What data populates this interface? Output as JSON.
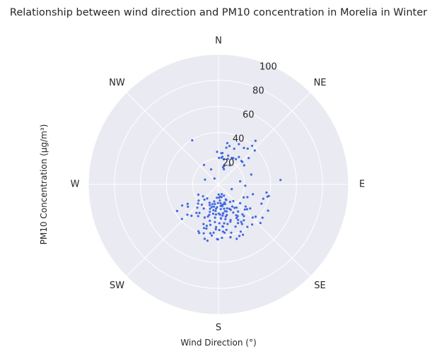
{
  "chart_data": {
    "type": "scatter",
    "projection": "polar",
    "title": "Relationship between wind direction and PM10 concentration in Morelia in Winter",
    "xlabel": "Wind Direction (°)",
    "ylabel": "PM10 Concentration (µg/m³)",
    "theta_direction": "clockwise",
    "theta_zero": "N",
    "direction_labels": [
      "N",
      "NE",
      "E",
      "SE",
      "S",
      "SW",
      "W",
      "NW"
    ],
    "r_ticks": [
      "20",
      "40",
      "60",
      "80",
      "100"
    ],
    "rlim": [
      0,
      100
    ],
    "grid": true,
    "colors": {
      "points": "#4169e1",
      "background": "#eaeaf2",
      "grid": "#ffffff"
    },
    "series": [
      {
        "points": [
          [
            40.2,
            44.0
          ],
          [
            12.0,
            32.5
          ],
          [
            15.9,
            30.7
          ],
          [
            34.9,
            34.2
          ],
          [
            26.8,
            34.7
          ],
          [
            23.7,
            30.0
          ],
          [
            39.2,
            35.5
          ],
          [
            41.0,
            39.4
          ],
          [
            46.9,
            38.2
          ],
          [
            29.1,
            23.2
          ],
          [
            34.5,
            23.6
          ],
          [
            5.3,
            24.2
          ],
          [
            7.2,
            24.3
          ],
          [
            357.5,
            25.1
          ],
          [
            6.3,
            20.6
          ],
          [
            8.0,
            21.4
          ],
          [
            329.2,
            39.5
          ],
          [
            323.4,
            18.7
          ],
          [
            26.7,
            22.8
          ],
          [
            20.1,
            20.9
          ],
          [
            11.7,
            19.7
          ],
          [
            1.0,
            20.4
          ],
          [
            48.9,
            30.8
          ],
          [
            44.3,
            25.2
          ],
          [
            53.4,
            24.6
          ],
          [
            14.7,
            13.6
          ],
          [
            16.5,
            14.6
          ],
          [
            19.8,
            12.4
          ],
          [
            30.4,
            17.0
          ],
          [
            18.6,
            23.4
          ],
          [
            46.6,
            25.2
          ],
          [
            12.0,
            28.9
          ],
          [
            36.7,
            26.3
          ],
          [
            85.9,
            47.8
          ],
          [
            73.2,
            26.3
          ],
          [
            107.7,
            36.1
          ],
          [
            104.0,
            38.8
          ],
          [
            99.6,
            37.4
          ],
          [
            102.9,
            39.7
          ],
          [
            117.9,
            43.1
          ],
          [
            92.8,
            20.6
          ],
          [
            106.0,
            27.5
          ],
          [
            114.1,
            36.2
          ],
          [
            81.8,
            16.8
          ],
          [
            333.8,
            12.9
          ],
          [
            325.9,
            5.5
          ],
          [
            289.5,
            11.0
          ],
          [
            191.1,
            44.1
          ],
          [
            174.6,
            36.4
          ],
          [
            203.2,
            39.2
          ],
          [
            187.5,
            39.7
          ],
          [
            167.3,
            41.7
          ],
          [
            154.1,
            43.0
          ],
          [
            195.8,
            33.1
          ],
          [
            171.7,
            30.2
          ],
          [
            162.3,
            30.0
          ],
          [
            148.8,
            33.7
          ],
          [
            154.4,
            21.7
          ],
          [
            166.5,
            21.1
          ],
          [
            174.8,
            19.1
          ],
          [
            184.9,
            23.2
          ],
          [
            196.9,
            24.5
          ],
          [
            142.1,
            22.6
          ],
          [
            131.0,
            29.1
          ],
          [
            144.7,
            33.8
          ],
          [
            152.3,
            24.4
          ],
          [
            190.5,
            15.3
          ],
          [
            170.1,
            16.2
          ],
          [
            211.4,
            21.7
          ],
          [
            217.7,
            27.7
          ],
          [
            225.7,
            33.4
          ],
          [
            233.9,
            29.1
          ],
          [
            226.6,
            38.7
          ],
          [
            239.9,
            32.3
          ],
          [
            226.8,
            21.5
          ],
          [
            219.5,
            20.2
          ],
          [
            230.9,
            19.7
          ],
          [
            218.8,
            13.9
          ],
          [
            232.6,
            15.0
          ],
          [
            237.8,
            28.0
          ],
          [
            161.2,
            28.9
          ],
          [
            153.8,
            13.4
          ],
          [
            183.5,
            17.6
          ],
          [
            166.4,
            10.0
          ],
          [
            175.2,
            12.4
          ],
          [
            145.5,
            21.8
          ],
          [
            200.7,
            32.6
          ],
          [
            176.1,
            26.0
          ],
          [
            183.2,
            32.9
          ],
          [
            170.1,
            35.5
          ],
          [
            193.4,
            28.8
          ],
          [
            158.0,
            35.0
          ],
          [
            179.4,
            22.4
          ],
          [
            167.0,
            15.8
          ],
          [
            168.7,
            27.2
          ],
          [
            127.2,
            30.6
          ],
          [
            202.9,
            17.3
          ],
          [
            146.5,
            16.1
          ],
          [
            186.9,
            10.3
          ],
          [
            197.2,
            15.9
          ],
          [
            154.1,
            9.6
          ],
          [
            138.2,
            17.1
          ],
          [
            151.7,
            29.3
          ],
          [
            179.2,
            7.7
          ],
          [
            160.3,
            19.5
          ],
          [
            191.4,
            20.2
          ],
          [
            186.0,
            25.7
          ],
          [
            174.0,
            32.6
          ],
          [
            154.8,
            40.1
          ],
          [
            131.0,
            37.8
          ],
          [
            132.6,
            43.8
          ],
          [
            155.7,
            20.6
          ],
          [
            164.7,
            24.4
          ],
          [
            172.5,
            24.2
          ],
          [
            185.5,
            29.1
          ],
          [
            131.0,
            22.0
          ],
          [
            144.2,
            25.7
          ],
          [
            113.7,
            24.3
          ],
          [
            197.4,
            22.1
          ],
          [
            220.7,
            31.8
          ],
          [
            213.7,
            26.4
          ],
          [
            222.8,
            15.9
          ],
          [
            205.8,
            15.7
          ],
          [
            212.7,
            29.0
          ],
          [
            145.8,
            39.5
          ],
          [
            181.4,
            42.1
          ],
          [
            167.1,
            31.2
          ],
          [
            133.6,
            28.0
          ],
          [
            140.0,
            40.2
          ],
          [
            127.1,
            42.4
          ],
          [
            134.2,
            36.6
          ],
          [
            117.3,
            21.8
          ],
          [
            109.4,
            10.8
          ],
          [
            161.5,
            44.1
          ],
          [
            179.0,
            35.1
          ],
          [
            186.2,
            20.5
          ],
          [
            167.1,
            19.2
          ],
          [
            243.0,
            17.4
          ],
          [
            191.4,
            31.7
          ],
          [
            158.0,
            42.8
          ],
          [
            176.3,
            41.1
          ],
          [
            222.4,
            24.2
          ],
          [
            198.3,
            35.4
          ],
          [
            202.7,
            27.6
          ],
          [
            189.5,
            38.1
          ],
          [
            198.2,
            26.0
          ],
          [
            167.2,
            41.6
          ],
          [
            165.2,
            38.4
          ],
          [
            172.8,
            37.4
          ],
          [
            201.6,
            40.2
          ],
          [
            178.8,
            29.9
          ],
          [
            174.5,
            32.3
          ],
          [
            163.2,
            21.7
          ],
          [
            170.7,
            22.6
          ],
          [
            173.0,
            9.4
          ],
          [
            194.3,
            13.5
          ],
          [
            161.9,
            14.7
          ],
          [
            148.0,
            20.0
          ],
          [
            141.3,
            31.2
          ],
          [
            191.7,
            17.5
          ],
          [
            181.8,
            14.3
          ],
          [
            199.0,
            19.8
          ],
          [
            183.4,
            34.5
          ],
          [
            149.3,
            35.4
          ],
          [
            185.8,
            37.3
          ],
          [
            175.8,
            26.4
          ],
          [
            153.2,
            33.3
          ],
          [
            194.3,
            43.2
          ],
          [
            196.8,
            18.1
          ],
          [
            161.5,
            7.9
          ],
          [
            174.0,
            16.6
          ],
          [
            167.2,
            25.3
          ],
          [
            185.7,
            18.7
          ],
          [
            190.3,
            22.9
          ],
          [
            161.2,
            15.9
          ],
          [
            148.9,
            28.5
          ],
          [
            180.6,
            42.3
          ],
          [
            177.0,
            23.3
          ],
          [
            177.7,
            10.3
          ],
          [
            173.8,
            14.5
          ],
          [
            151.2,
            31.2
          ],
          [
            154.0,
            12.8
          ],
          [
            141.3,
            29.5
          ],
          [
            150.2,
            27.4
          ],
          [
            196.8,
            39.3
          ],
          [
            195.3,
            35.2
          ],
          [
            170.3,
            17.0
          ],
          [
            171.4,
            22.5
          ],
          [
            129.2,
            26.9
          ],
          [
            237.3,
            37.8
          ]
        ]
      }
    ]
  }
}
